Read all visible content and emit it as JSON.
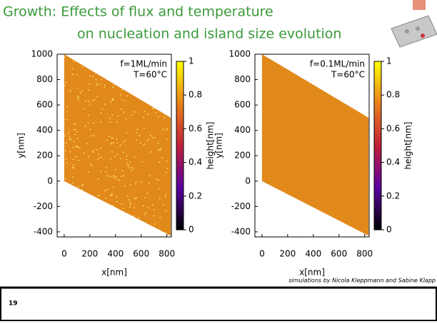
{
  "slide": {
    "title_lines": [
      "Growth: Effects of flux and temperature",
      "on nucleation and island size evolution"
    ],
    "credit": "simulations by Nicola Kleppmann and Sabine Klapp",
    "number": "19"
  },
  "chart_data": [
    {
      "type": "heatmap",
      "xlabel": "x[nm]",
      "ylabel": "y[nm]",
      "colorbar_label": "height[nm]",
      "annotations": [
        "f=1ML/min",
        "T=60°C"
      ],
      "region": {
        "x": [
          0,
          830,
          830,
          0
        ],
        "y": [
          1000,
          500,
          -430,
          0
        ],
        "color": "#e2891c"
      },
      "xlim": [
        -55,
        835
      ],
      "xticks": [
        0,
        200,
        400,
        600,
        800
      ],
      "ylim": [
        -440,
        1000
      ],
      "yticks": [
        -400,
        -200,
        0,
        200,
        400,
        600,
        800,
        1000
      ],
      "zlim": [
        0,
        1
      ],
      "zticks": [
        0,
        0.2,
        0.4,
        0.6,
        0.8,
        1
      ],
      "colorscale": [
        "#000000",
        "#5a00a0",
        "#c0203a",
        "#e8801a",
        "#ffff00"
      ]
    },
    {
      "type": "heatmap",
      "xlabel": "x[nm]",
      "ylabel": "y[nm]",
      "colorbar_label": "height[nm]",
      "annotations": [
        "f=0.1ML/min",
        "T=60°C"
      ],
      "region": {
        "x": [
          0,
          830,
          830,
          0
        ],
        "y": [
          1000,
          500,
          -430,
          0
        ],
        "color": "#e2891c"
      },
      "xlim": [
        -55,
        835
      ],
      "xticks": [
        0,
        200,
        400,
        600,
        800
      ],
      "ylim": [
        -440,
        1000
      ],
      "yticks": [
        -400,
        -200,
        0,
        200,
        400,
        600,
        800,
        1000
      ],
      "zlim": [
        0,
        1
      ],
      "zticks": [
        0,
        0.2,
        0.4,
        0.6,
        0.8,
        1
      ],
      "colorscale": [
        "#000000",
        "#5a00a0",
        "#c0203a",
        "#e8801a",
        "#ffff00"
      ]
    }
  ]
}
